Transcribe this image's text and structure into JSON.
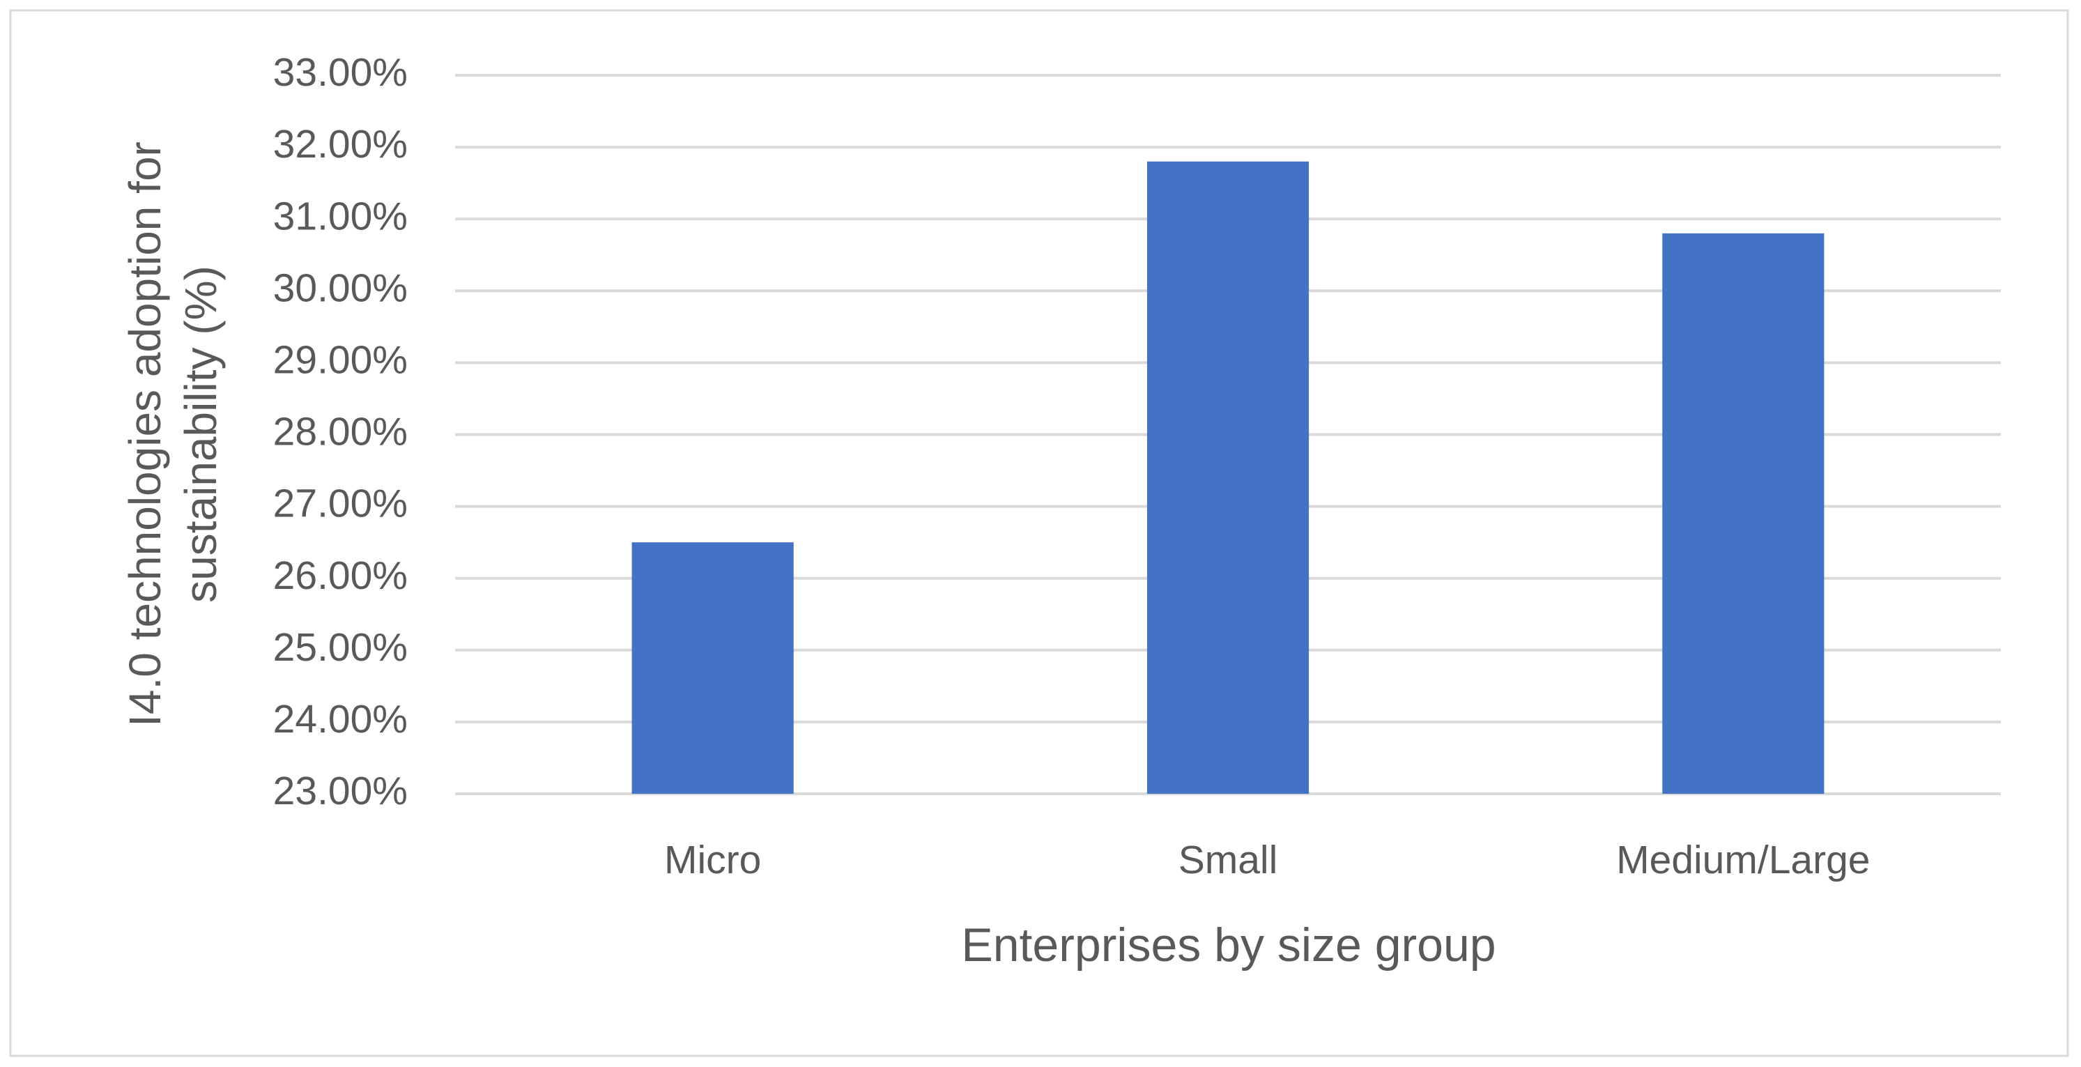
{
  "chart_data": {
    "type": "bar",
    "y_label": "I4.0 technologies adoption for sustainability (%)",
    "x_label": "Enterprises by size group",
    "categories": [
      "Micro",
      "Small",
      "Medium/Large"
    ],
    "values": [
      26.5,
      31.8,
      30.8
    ],
    "color": "#4472c4",
    "ylim": [
      23,
      33
    ],
    "yticks": [
      {
        "value": 23,
        "label": "23.00%"
      },
      {
        "value": 24,
        "label": "24.00%"
      },
      {
        "value": 25,
        "label": "25.00%"
      },
      {
        "value": 26,
        "label": "26.00%"
      },
      {
        "value": 27,
        "label": "27.00%"
      },
      {
        "value": 28,
        "label": "28.00%"
      },
      {
        "value": 29,
        "label": "29.00%"
      },
      {
        "value": 30,
        "label": "30.00%"
      },
      {
        "value": 31,
        "label": "31.00%"
      },
      {
        "value": 32,
        "label": "32.00%"
      },
      {
        "value": 33,
        "label": "33.00%"
      }
    ],
    "grid": true
  }
}
